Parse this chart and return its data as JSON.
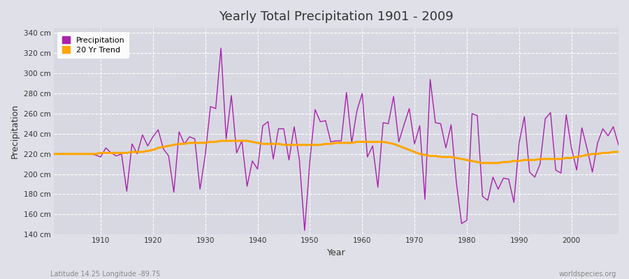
{
  "title": "Yearly Total Precipitation 1901 - 2009",
  "xlabel": "Year",
  "ylabel": "Precipitation",
  "footnote_left": "Latitude 14.25 Longitude -89.75",
  "footnote_right": "worldspecies.org",
  "line_color": "#AA22AA",
  "trend_color": "#FFA500",
  "bg_color": "#E0E0E8",
  "plot_bg_color": "#D8D8E2",
  "grid_color": "#FFFFFF",
  "ylim": [
    140,
    345
  ],
  "yticks": [
    140,
    160,
    180,
    200,
    220,
    240,
    260,
    280,
    300,
    320,
    340
  ],
  "xticks": [
    1910,
    1920,
    1930,
    1940,
    1950,
    1960,
    1970,
    1980,
    1990,
    2000
  ],
  "years": [
    1901,
    1902,
    1903,
    1904,
    1905,
    1906,
    1907,
    1908,
    1909,
    1910,
    1911,
    1912,
    1913,
    1914,
    1915,
    1916,
    1917,
    1918,
    1919,
    1920,
    1921,
    1922,
    1923,
    1924,
    1925,
    1926,
    1927,
    1928,
    1929,
    1930,
    1931,
    1932,
    1933,
    1934,
    1935,
    1936,
    1937,
    1938,
    1939,
    1940,
    1941,
    1942,
    1943,
    1944,
    1945,
    1946,
    1947,
    1948,
    1949,
    1950,
    1951,
    1952,
    1953,
    1954,
    1955,
    1956,
    1957,
    1958,
    1959,
    1960,
    1961,
    1962,
    1963,
    1964,
    1965,
    1966,
    1967,
    1968,
    1969,
    1970,
    1971,
    1972,
    1973,
    1974,
    1975,
    1976,
    1977,
    1978,
    1979,
    1980,
    1981,
    1982,
    1983,
    1984,
    1985,
    1986,
    1987,
    1988,
    1989,
    1990,
    1991,
    1992,
    1993,
    1994,
    1995,
    1996,
    1997,
    1998,
    1999,
    2000,
    2001,
    2002,
    2003,
    2004,
    2005,
    2006,
    2007,
    2008,
    2009
  ],
  "precip": [
    220,
    220,
    220,
    220,
    220,
    220,
    220,
    220,
    219,
    217,
    226,
    221,
    218,
    220,
    183,
    230,
    220,
    239,
    228,
    237,
    244,
    225,
    218,
    182,
    242,
    230,
    237,
    235,
    185,
    219,
    267,
    265,
    325,
    235,
    278,
    221,
    233,
    188,
    213,
    205,
    248,
    252,
    215,
    245,
    245,
    214,
    247,
    214,
    144,
    213,
    264,
    252,
    253,
    232,
    233,
    233,
    281,
    231,
    263,
    280,
    217,
    228,
    187,
    251,
    250,
    277,
    232,
    249,
    265,
    230,
    248,
    175,
    294,
    251,
    250,
    226,
    249,
    192,
    151,
    154,
    260,
    258,
    178,
    174,
    197,
    185,
    196,
    195,
    172,
    231,
    257,
    202,
    197,
    210,
    255,
    261,
    204,
    201,
    259,
    226,
    204,
    246,
    225,
    202,
    231,
    245,
    238,
    247,
    229
  ],
  "trend": [
    220,
    220,
    220,
    220,
    220,
    220,
    220,
    220,
    220,
    221,
    221,
    221,
    221,
    221,
    221,
    222,
    222,
    222,
    223,
    224,
    226,
    227,
    228,
    229,
    230,
    230,
    231,
    231,
    231,
    231,
    232,
    232,
    233,
    233,
    233,
    233,
    233,
    233,
    232,
    231,
    230,
    230,
    230,
    230,
    229,
    229,
    229,
    229,
    229,
    229,
    229,
    229,
    230,
    230,
    231,
    231,
    231,
    231,
    232,
    232,
    232,
    232,
    232,
    232,
    231,
    230,
    228,
    226,
    224,
    222,
    220,
    219,
    218,
    218,
    217,
    217,
    217,
    216,
    215,
    214,
    213,
    212,
    211,
    211,
    211,
    211,
    212,
    212,
    213,
    213,
    214,
    214,
    214,
    215,
    215,
    215,
    215,
    215,
    216,
    216,
    217,
    218,
    219,
    220,
    220,
    221,
    221,
    222,
    222
  ]
}
